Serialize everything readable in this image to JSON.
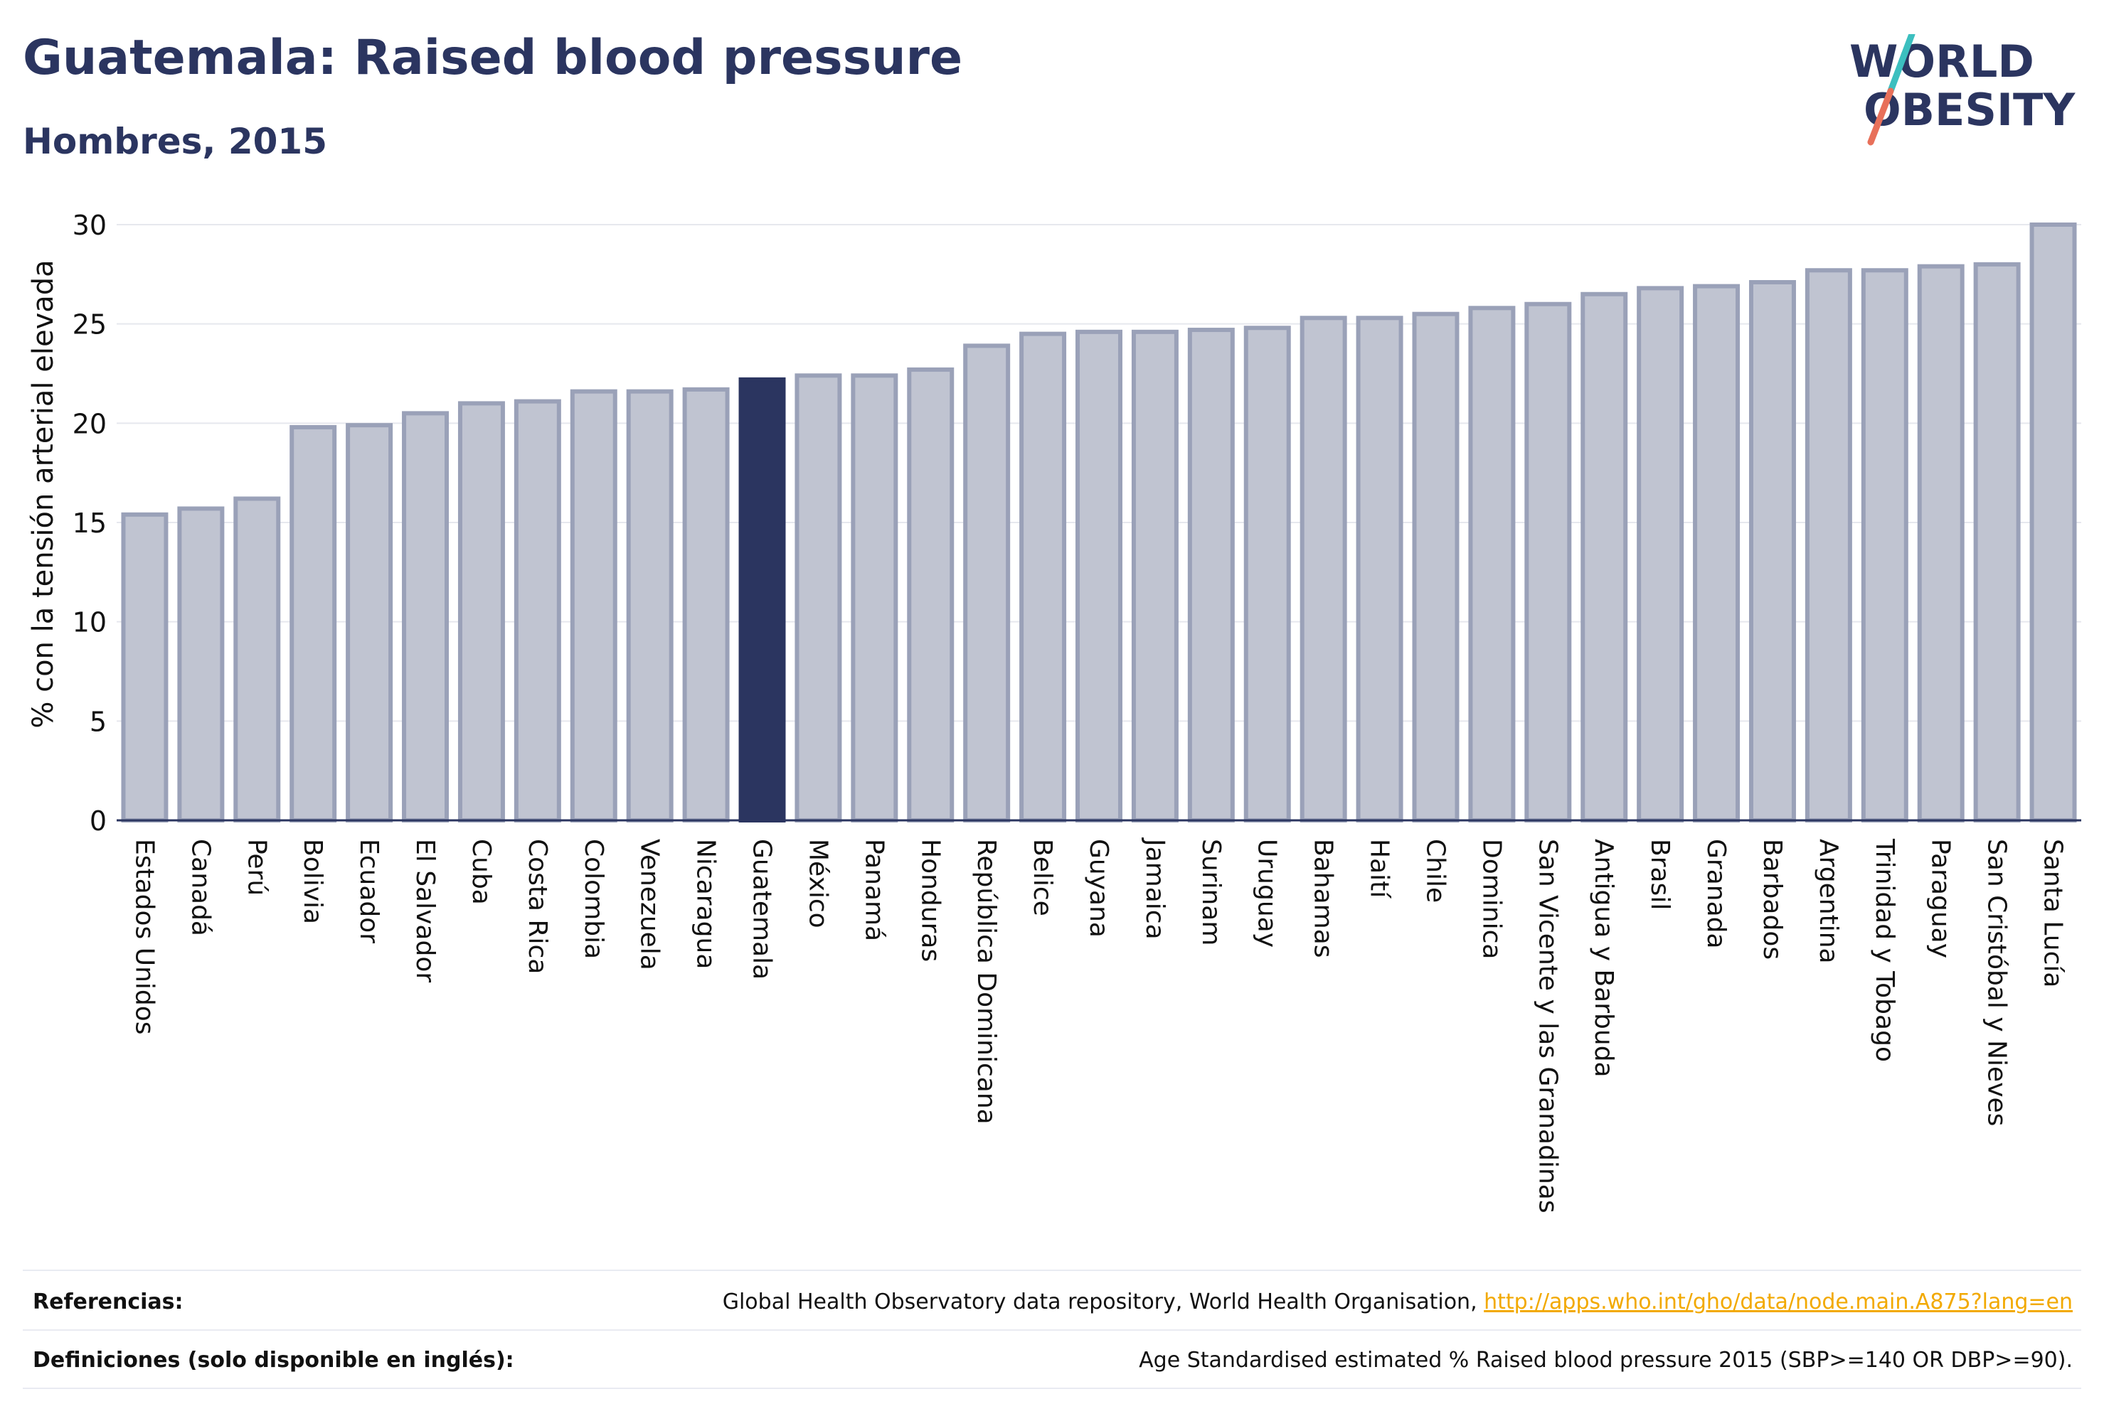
{
  "header": {
    "title": "Guatemala: Raised blood pressure",
    "subtitle": "Hombres, 2015"
  },
  "logo": {
    "line1": "WORLD",
    "line2": "OBESITY"
  },
  "colors": {
    "bar_fill": "#c0c4d1",
    "bar_stroke": "#9aa1b8",
    "highlight": "#2b3560",
    "grid": "#e6e8ee",
    "text": "#2b3560",
    "link": "#f2a900",
    "logo_teal": "#3cbfbf",
    "logo_coral": "#e8705a"
  },
  "chart_data": {
    "type": "bar",
    "ylabel": "% con la tensión arterial elevada",
    "ylim": [
      0,
      30
    ],
    "yticks": [
      0,
      5,
      10,
      15,
      20,
      25,
      30
    ],
    "highlight": "Guatemala",
    "categories": [
      "Estados Unidos",
      "Canadá",
      "Perú",
      "Bolivia",
      "Ecuador",
      "El Salvador",
      "Cuba",
      "Costa Rica",
      "Colombia",
      "Venezuela",
      "Nicaragua",
      "Guatemala",
      "México",
      "Panamá",
      "Honduras",
      "República Dominicana",
      "Belice",
      "Guyana",
      "Jamaica",
      "Surinam",
      "Uruguay",
      "Bahamas",
      "Haití",
      "Chile",
      "Dominica",
      "San Vicente y las Granadinas",
      "Antigua y Barbuda",
      "Brasil",
      "Granada",
      "Barbados",
      "Argentina",
      "Trinidad y Tobago",
      "Paraguay",
      "San Cristóbal y Nieves",
      "Santa Lucía"
    ],
    "values": [
      15.4,
      15.7,
      16.2,
      19.8,
      19.9,
      20.5,
      21.0,
      21.1,
      21.6,
      21.6,
      21.7,
      22.2,
      22.4,
      22.4,
      22.7,
      23.9,
      24.5,
      24.6,
      24.6,
      24.7,
      24.8,
      25.3,
      25.3,
      25.5,
      25.8,
      26.0,
      26.5,
      26.8,
      26.9,
      27.1,
      27.7,
      27.7,
      27.9,
      28.0,
      30.0
    ]
  },
  "footer": {
    "references_label": "Referencias:",
    "references_text": "Global Health Observatory data repository, World Health Organisation, ",
    "references_link": "http://apps.who.int/gho/data/node.main.A875?lang=en",
    "definitions_label": "Definiciones (solo disponible en inglés):",
    "definitions_text": "Age Standardised estimated % Raised blood pressure 2015 (SBP>=140 OR DBP>=90)."
  }
}
